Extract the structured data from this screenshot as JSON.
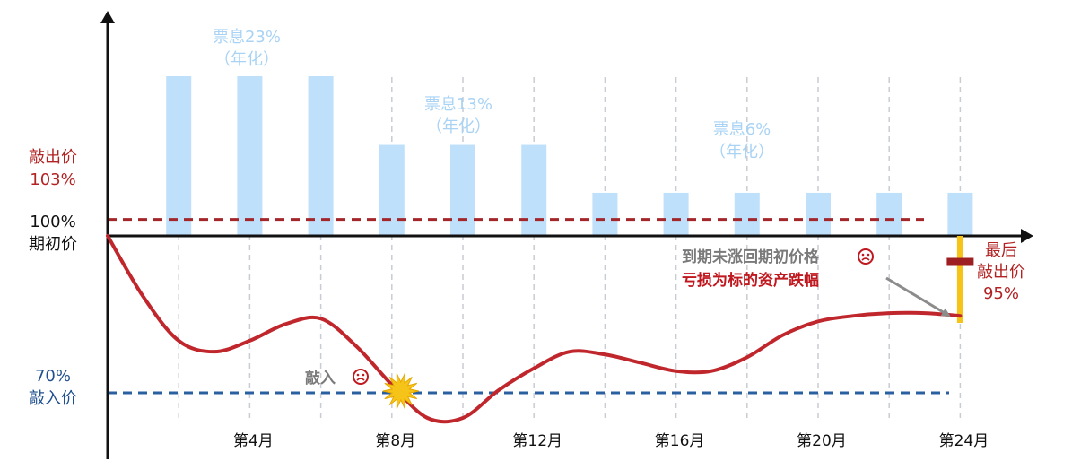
{
  "chart_data": {
    "type": "diagram",
    "x_ticks": [
      {
        "month": 4,
        "label": "第4月"
      },
      {
        "month": 8,
        "label": "第8月"
      },
      {
        "month": 12,
        "label": "第12月"
      },
      {
        "month": 16,
        "label": "第16月"
      },
      {
        "month": 20,
        "label": "第20月"
      },
      {
        "month": 24,
        "label": "第24月"
      }
    ],
    "coupon_bars": [
      {
        "month": 2,
        "level": 1.0
      },
      {
        "month": 4,
        "level": 1.0
      },
      {
        "month": 6,
        "level": 1.0
      },
      {
        "month": 8,
        "level": 0.57
      },
      {
        "month": 10,
        "level": 0.57
      },
      {
        "month": 12,
        "level": 0.57
      },
      {
        "month": 14,
        "level": 0.27
      },
      {
        "month": 16,
        "level": 0.27
      },
      {
        "month": 18,
        "level": 0.27
      },
      {
        "month": 20,
        "level": 0.27
      },
      {
        "month": 22,
        "level": 0.27
      },
      {
        "month": 24,
        "level": 0.27
      }
    ],
    "coupon_labels": [
      {
        "line1": "票息23%",
        "line2": "（年化）"
      },
      {
        "line1": "票息13%",
        "line2": "（年化）"
      },
      {
        "line1": "票息6%",
        "line2": "（年化）"
      }
    ],
    "levels": {
      "knock_out": {
        "value": 103,
        "label1": "敲出价",
        "label2": "103%"
      },
      "initial": {
        "value": 100,
        "label1": "100%",
        "label2": "期初价"
      },
      "knock_in": {
        "value": 70,
        "label1": "70%",
        "label2": "敲入价"
      }
    },
    "final_knock_out": {
      "value": 95,
      "label1": "最后",
      "label2": "敲出价",
      "label3": "95%"
    },
    "price_path": [
      {
        "month": 0,
        "value": 100
      },
      {
        "month": 1,
        "value": 89
      },
      {
        "month": 2,
        "value": 81
      },
      {
        "month": 3,
        "value": 79
      },
      {
        "month": 4,
        "value": 81
      },
      {
        "month": 5,
        "value": 84
      },
      {
        "month": 6,
        "value": 85
      },
      {
        "month": 7,
        "value": 80
      },
      {
        "month": 8,
        "value": 73
      },
      {
        "month": 9,
        "value": 67
      },
      {
        "month": 10,
        "value": 67
      },
      {
        "month": 11,
        "value": 72
      },
      {
        "month": 12,
        "value": 76
      },
      {
        "month": 13,
        "value": 79
      },
      {
        "month": 14,
        "value": 78.5
      },
      {
        "month": 15,
        "value": 77
      },
      {
        "month": 16,
        "value": 75.5
      },
      {
        "month": 17,
        "value": 75.5
      },
      {
        "month": 18,
        "value": 78
      },
      {
        "month": 19,
        "value": 82
      },
      {
        "month": 20,
        "value": 84.5
      },
      {
        "month": 21,
        "value": 85.5
      },
      {
        "month": 22,
        "value": 86
      },
      {
        "month": 23,
        "value": 86
      },
      {
        "month": 24,
        "value": 85.5
      }
    ],
    "knock_in_event": {
      "month": 8,
      "label": "敲入"
    },
    "annotation": {
      "line1": "到期未涨回期初价格",
      "line2": "亏损为标的资产跌幅"
    },
    "colors": {
      "bar": "#bfe0fb",
      "coupon_text": "#a9d3f5",
      "knock_out": "#a3262a",
      "knock_in": "#2a5fa0",
      "path": "#c0272d",
      "final_bar": "#f6c418",
      "final_marker": "#9e1f22",
      "grid": "#c9ccd3",
      "star": "#f6c418",
      "arrow": "#8c8c8c"
    }
  }
}
